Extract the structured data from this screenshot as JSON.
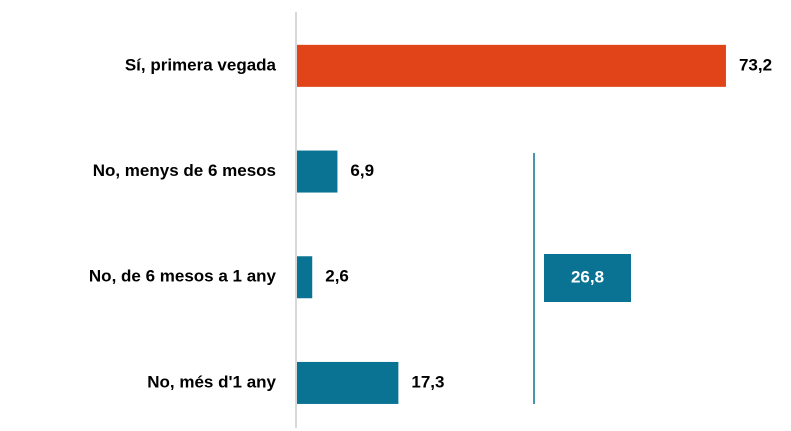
{
  "chart_data": {
    "type": "barh",
    "categories": [
      "Sí, primera vegada",
      "No, menys de 6 mesos",
      "No, de 6 mesos a 1 any",
      "No, més d'1 any"
    ],
    "values": [
      73.2,
      6.9,
      2.6,
      17.3
    ],
    "value_labels": [
      "73,2",
      "6,9",
      "2,6",
      "17,3"
    ],
    "colors": [
      "#e04418",
      "#0a7394",
      "#0a7394",
      "#0a7394"
    ],
    "annotation": {
      "value": 26.8,
      "label": "26,8",
      "color": "#0a7394"
    }
  }
}
